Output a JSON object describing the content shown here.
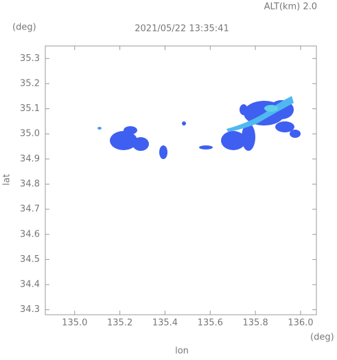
{
  "chart_data": {
    "type": "map",
    "title": "2021/05/22 13:35:41",
    "subtitle": "ALT(km) 2.0",
    "x_label": "lon",
    "y_label": "lat",
    "x_unit": "(deg)",
    "y_unit": "(deg)",
    "xlim": [
      134.87,
      136.07
    ],
    "xticks": [
      {
        "value": 135,
        "label": "135.0"
      },
      135.2,
      135.4,
      135.6,
      135.8,
      {
        "value": 136,
        "label": "136.0"
      }
    ],
    "ylim": [
      34.28,
      35.35
    ],
    "yticks": [
      34.3,
      34.4,
      34.5,
      34.6,
      34.7,
      34.8,
      34.9,
      {
        "value": 35,
        "label": "35.0"
      },
      35.1,
      35.2,
      35.3
    ],
    "grid": false
  }
}
